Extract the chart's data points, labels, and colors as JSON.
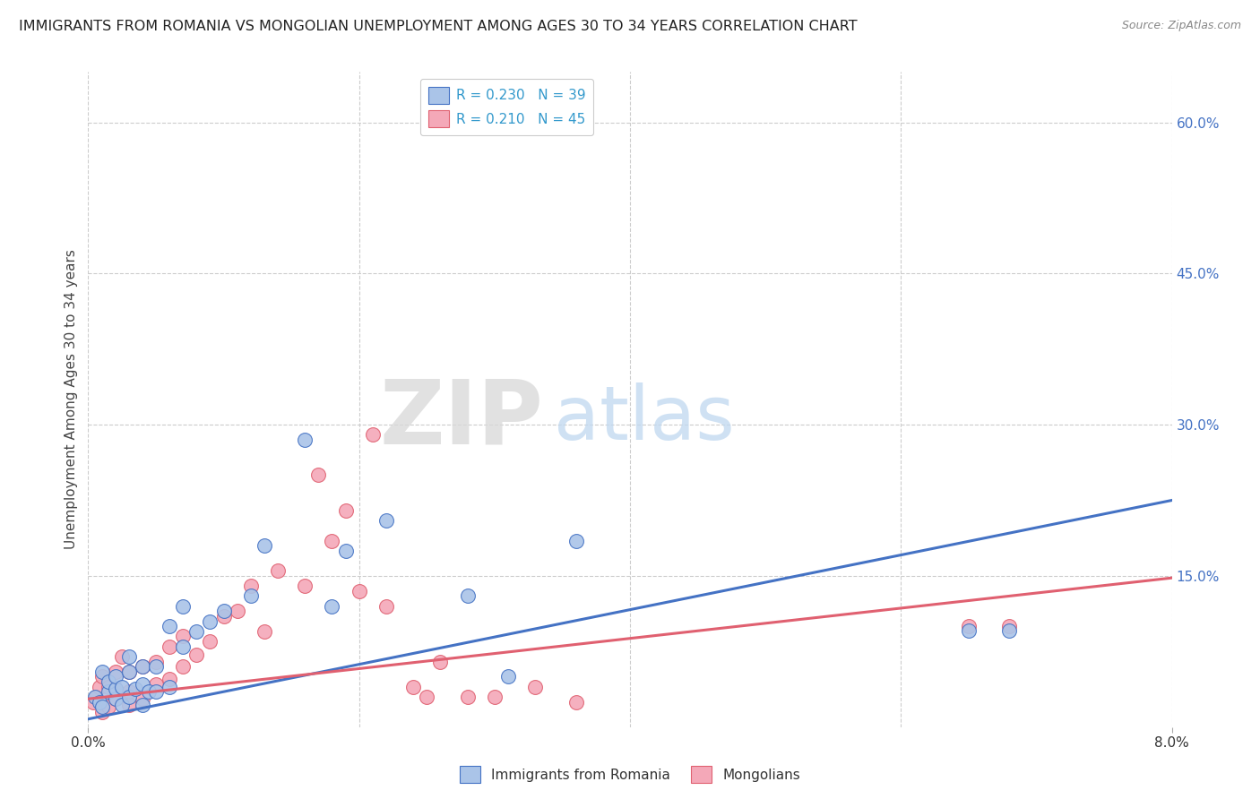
{
  "title": "IMMIGRANTS FROM ROMANIA VS MONGOLIAN UNEMPLOYMENT AMONG AGES 30 TO 34 YEARS CORRELATION CHART",
  "source": "Source: ZipAtlas.com",
  "ylabel": "Unemployment Among Ages 30 to 34 years",
  "xlim": [
    0.0,
    0.08
  ],
  "ylim": [
    0.0,
    0.65
  ],
  "romania_R": 0.23,
  "romania_N": 39,
  "mongolia_R": 0.21,
  "mongolia_N": 45,
  "blue_color": "#aac4e8",
  "pink_color": "#f4a8b8",
  "blue_line_color": "#4472c4",
  "pink_line_color": "#e06070",
  "legend_R_color": "#3399cc",
  "romania_x": [
    0.0005,
    0.0008,
    0.001,
    0.001,
    0.0015,
    0.0015,
    0.002,
    0.002,
    0.002,
    0.0025,
    0.0025,
    0.003,
    0.003,
    0.003,
    0.0035,
    0.004,
    0.004,
    0.004,
    0.0045,
    0.005,
    0.005,
    0.006,
    0.006,
    0.007,
    0.007,
    0.008,
    0.009,
    0.01,
    0.012,
    0.013,
    0.016,
    0.018,
    0.019,
    0.022,
    0.028,
    0.031,
    0.036,
    0.065,
    0.068
  ],
  "romania_y": [
    0.03,
    0.025,
    0.02,
    0.055,
    0.035,
    0.045,
    0.028,
    0.038,
    0.05,
    0.022,
    0.04,
    0.03,
    0.055,
    0.07,
    0.038,
    0.022,
    0.042,
    0.06,
    0.035,
    0.06,
    0.035,
    0.04,
    0.1,
    0.08,
    0.12,
    0.095,
    0.105,
    0.115,
    0.13,
    0.18,
    0.285,
    0.12,
    0.175,
    0.205,
    0.13,
    0.05,
    0.185,
    0.096,
    0.096
  ],
  "mongolia_x": [
    0.0004,
    0.0006,
    0.0008,
    0.001,
    0.001,
    0.0015,
    0.0015,
    0.002,
    0.002,
    0.002,
    0.0025,
    0.003,
    0.003,
    0.003,
    0.004,
    0.004,
    0.005,
    0.005,
    0.006,
    0.006,
    0.007,
    0.007,
    0.008,
    0.009,
    0.01,
    0.011,
    0.012,
    0.013,
    0.014,
    0.016,
    0.017,
    0.018,
    0.019,
    0.02,
    0.021,
    0.022,
    0.024,
    0.025,
    0.026,
    0.028,
    0.03,
    0.033,
    0.036,
    0.065,
    0.068
  ],
  "mongolia_y": [
    0.025,
    0.03,
    0.04,
    0.015,
    0.05,
    0.02,
    0.04,
    0.028,
    0.038,
    0.055,
    0.07,
    0.022,
    0.035,
    0.055,
    0.028,
    0.06,
    0.042,
    0.065,
    0.048,
    0.08,
    0.06,
    0.09,
    0.072,
    0.085,
    0.11,
    0.115,
    0.14,
    0.095,
    0.155,
    0.14,
    0.25,
    0.185,
    0.215,
    0.135,
    0.29,
    0.12,
    0.04,
    0.03,
    0.065,
    0.03,
    0.03,
    0.04,
    0.025,
    0.1,
    0.1
  ],
  "watermark_zip": "ZIP",
  "watermark_atlas": "atlas",
  "background_color": "#ffffff",
  "grid_color": "#cccccc"
}
